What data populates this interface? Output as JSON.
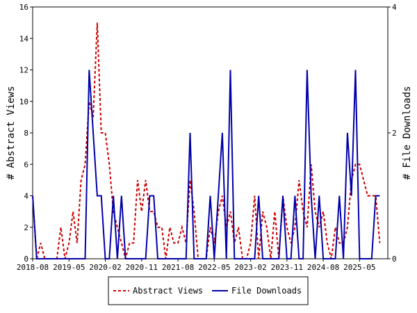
{
  "chart_data": {
    "type": "line",
    "x_axis": {
      "tick_labels": [
        "2018-08",
        "2019-05",
        "2020-02",
        "2020-11",
        "2021-08",
        "2022-05",
        "2023-02",
        "2023-11",
        "2024-08",
        "2025-05"
      ],
      "range": [
        "2018-08",
        "2025-12"
      ]
    },
    "y_left": {
      "label": "# Abstract Views",
      "ylim": [
        0,
        16
      ],
      "ticks": [
        0,
        2,
        4,
        6,
        8,
        10,
        12,
        14,
        16
      ]
    },
    "y_right": {
      "label": "# File Downloads",
      "ylim": [
        0,
        4
      ],
      "ticks": [
        0,
        2,
        4
      ]
    },
    "grid": false,
    "legend_position": "bottom",
    "series": [
      {
        "name": "Abstract Views",
        "axis": "left",
        "color": "#cc0000",
        "style": "dashed",
        "points": [
          [
            "2018-08",
            4
          ],
          [
            "2018-09",
            0
          ],
          [
            "2018-10",
            1
          ],
          [
            "2018-11",
            0
          ],
          [
            "2018-12",
            0
          ],
          [
            "2019-01",
            0
          ],
          [
            "2019-02",
            0
          ],
          [
            "2019-03",
            2
          ],
          [
            "2019-04",
            0
          ],
          [
            "2019-05",
            1
          ],
          [
            "2019-06",
            3
          ],
          [
            "2019-07",
            1
          ],
          [
            "2019-08",
            5
          ],
          [
            "2019-09",
            6
          ],
          [
            "2019-10",
            10
          ],
          [
            "2019-11",
            9
          ],
          [
            "2019-12",
            15
          ],
          [
            "2020-01",
            8
          ],
          [
            "2020-02",
            8
          ],
          [
            "2020-03",
            6
          ],
          [
            "2020-04",
            3
          ],
          [
            "2020-05",
            2
          ],
          [
            "2020-06",
            1
          ],
          [
            "2020-07",
            0
          ],
          [
            "2020-08",
            1
          ],
          [
            "2020-09",
            1
          ],
          [
            "2020-10",
            5
          ],
          [
            "2020-11",
            3
          ],
          [
            "2020-12",
            5
          ],
          [
            "2021-01",
            3
          ],
          [
            "2021-02",
            3
          ],
          [
            "2021-03",
            2
          ],
          [
            "2021-04",
            2
          ],
          [
            "2021-05",
            0
          ],
          [
            "2021-06",
            2
          ],
          [
            "2021-07",
            1
          ],
          [
            "2021-08",
            1
          ],
          [
            "2021-09",
            2
          ],
          [
            "2021-10",
            1
          ],
          [
            "2021-11",
            5
          ],
          [
            "2021-12",
            3
          ],
          [
            "2022-01",
            0
          ],
          [
            "2022-02",
            0
          ],
          [
            "2022-03",
            0
          ],
          [
            "2022-04",
            2
          ],
          [
            "2022-05",
            1
          ],
          [
            "2022-06",
            3
          ],
          [
            "2022-07",
            4
          ],
          [
            "2022-08",
            2
          ],
          [
            "2022-09",
            3
          ],
          [
            "2022-10",
            1
          ],
          [
            "2022-11",
            2
          ],
          [
            "2022-12",
            0
          ],
          [
            "2023-01",
            0
          ],
          [
            "2023-02",
            1
          ],
          [
            "2023-03",
            4
          ],
          [
            "2023-04",
            0
          ],
          [
            "2023-05",
            3
          ],
          [
            "2023-06",
            2
          ],
          [
            "2023-07",
            0
          ],
          [
            "2023-08",
            3
          ],
          [
            "2023-09",
            0
          ],
          [
            "2023-10",
            4
          ],
          [
            "2023-11",
            2
          ],
          [
            "2023-12",
            1
          ],
          [
            "2024-01",
            2
          ],
          [
            "2024-02",
            5
          ],
          [
            "2024-03",
            3
          ],
          [
            "2024-04",
            2
          ],
          [
            "2024-05",
            6
          ],
          [
            "2024-06",
            3
          ],
          [
            "2024-07",
            2
          ],
          [
            "2024-08",
            3
          ],
          [
            "2024-09",
            1
          ],
          [
            "2024-10",
            0
          ],
          [
            "2024-11",
            2
          ],
          [
            "2024-12",
            1
          ],
          [
            "2025-01",
            1
          ],
          [
            "2025-02",
            2
          ],
          [
            "2025-03",
            5
          ],
          [
            "2025-04",
            6
          ],
          [
            "2025-05",
            6
          ],
          [
            "2025-06",
            5
          ],
          [
            "2025-07",
            4
          ],
          [
            "2025-08",
            4
          ],
          [
            "2025-09",
            4
          ],
          [
            "2025-10",
            1
          ]
        ]
      },
      {
        "name": "File Downloads",
        "axis": "right",
        "color": "#0000aa",
        "style": "solid",
        "points": [
          [
            "2018-08",
            1
          ],
          [
            "2018-09",
            0
          ],
          [
            "2018-10",
            0
          ],
          [
            "2018-11",
            0
          ],
          [
            "2018-12",
            0
          ],
          [
            "2019-01",
            0
          ],
          [
            "2019-02",
            0
          ],
          [
            "2019-03",
            0
          ],
          [
            "2019-04",
            0
          ],
          [
            "2019-05",
            0
          ],
          [
            "2019-06",
            0
          ],
          [
            "2019-07",
            0
          ],
          [
            "2019-08",
            0
          ],
          [
            "2019-09",
            0
          ],
          [
            "2019-10",
            3
          ],
          [
            "2019-11",
            2
          ],
          [
            "2019-12",
            1
          ],
          [
            "2020-01",
            1
          ],
          [
            "2020-02",
            0
          ],
          [
            "2020-03",
            0
          ],
          [
            "2020-04",
            1
          ],
          [
            "2020-05",
            0
          ],
          [
            "2020-06",
            1
          ],
          [
            "2020-07",
            0
          ],
          [
            "2020-08",
            0
          ],
          [
            "2020-09",
            0
          ],
          [
            "2020-10",
            0
          ],
          [
            "2020-11",
            0
          ],
          [
            "2020-12",
            0
          ],
          [
            "2021-01",
            1
          ],
          [
            "2021-02",
            1
          ],
          [
            "2021-03",
            0
          ],
          [
            "2021-04",
            0
          ],
          [
            "2021-05",
            0
          ],
          [
            "2021-06",
            0
          ],
          [
            "2021-07",
            0
          ],
          [
            "2021-08",
            0
          ],
          [
            "2021-09",
            0
          ],
          [
            "2021-10",
            0
          ],
          [
            "2021-11",
            2
          ],
          [
            "2021-12",
            0
          ],
          [
            "2022-01",
            0
          ],
          [
            "2022-02",
            0
          ],
          [
            "2022-03",
            0
          ],
          [
            "2022-04",
            1
          ],
          [
            "2022-05",
            0
          ],
          [
            "2022-06",
            1
          ],
          [
            "2022-07",
            2
          ],
          [
            "2022-08",
            0
          ],
          [
            "2022-09",
            3
          ],
          [
            "2022-10",
            0
          ],
          [
            "2022-11",
            0
          ],
          [
            "2022-12",
            0
          ],
          [
            "2023-01",
            0
          ],
          [
            "2023-02",
            0
          ],
          [
            "2023-03",
            0
          ],
          [
            "2023-04",
            1
          ],
          [
            "2023-05",
            0
          ],
          [
            "2023-06",
            0
          ],
          [
            "2023-07",
            0
          ],
          [
            "2023-08",
            0
          ],
          [
            "2023-09",
            0
          ],
          [
            "2023-10",
            1
          ],
          [
            "2023-11",
            0
          ],
          [
            "2023-12",
            0
          ],
          [
            "2024-01",
            1
          ],
          [
            "2024-02",
            0
          ],
          [
            "2024-03",
            0
          ],
          [
            "2024-04",
            3
          ],
          [
            "2024-05",
            1
          ],
          [
            "2024-06",
            0
          ],
          [
            "2024-07",
            1
          ],
          [
            "2024-08",
            0
          ],
          [
            "2024-09",
            0
          ],
          [
            "2024-10",
            0
          ],
          [
            "2024-11",
            0
          ],
          [
            "2024-12",
            1
          ],
          [
            "2025-01",
            0
          ],
          [
            "2025-02",
            2
          ],
          [
            "2025-03",
            1
          ],
          [
            "2025-04",
            3
          ],
          [
            "2025-05",
            0
          ],
          [
            "2025-06",
            0
          ],
          [
            "2025-07",
            0
          ],
          [
            "2025-08",
            0
          ],
          [
            "2025-09",
            1
          ],
          [
            "2025-10",
            1
          ]
        ]
      }
    ]
  }
}
